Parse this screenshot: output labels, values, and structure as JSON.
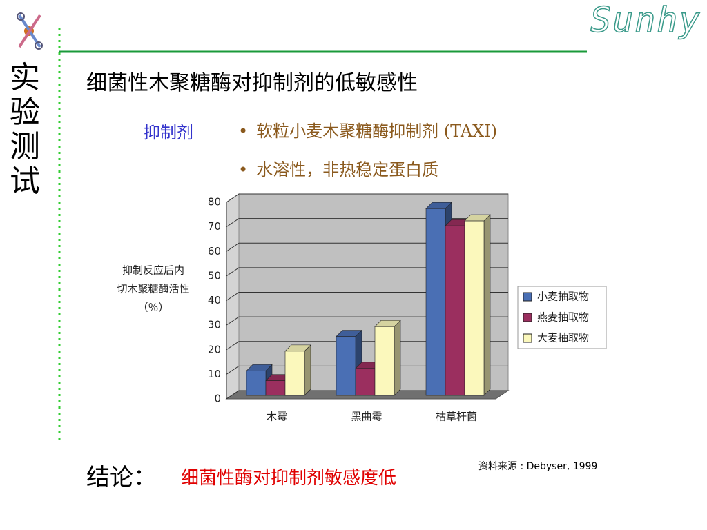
{
  "logo": "Sunhy",
  "section": "实验测试",
  "title": "细菌性木聚糖酶对抑制剂的低敏感性",
  "inhibitor_label": "抑制剂",
  "bullets": [
    "软粒小麦木聚糖酶抑制剂  (TAXI)",
    "水溶性，非热稳定蛋白质"
  ],
  "conclusion_label": "结论：",
  "conclusion": "细菌性酶对抑制剂敏感度低",
  "source": "资料来源 : Debyser, 1999",
  "chart_data": {
    "type": "bar3d",
    "y_label": [
      "抑制反应后内",
      "切木聚糖酶活性",
      "（％）"
    ],
    "categories": [
      "木霉",
      "黑曲霉",
      "枯草杆菌"
    ],
    "series": [
      {
        "name": "小麦抽取物",
        "color": "#4a6fb4",
        "values": [
          10,
          24,
          76
        ]
      },
      {
        "name": "燕麦抽取物",
        "color": "#9b2f5f",
        "values": [
          6,
          11,
          69
        ]
      },
      {
        "name": "大麦抽取物",
        "color": "#fbf8bc",
        "values": [
          18,
          28,
          71
        ]
      }
    ],
    "ylim": [
      0,
      80
    ],
    "yticks": [
      0,
      10,
      20,
      30,
      40,
      50,
      60,
      70,
      80
    ],
    "grid": true,
    "legend": "right"
  }
}
